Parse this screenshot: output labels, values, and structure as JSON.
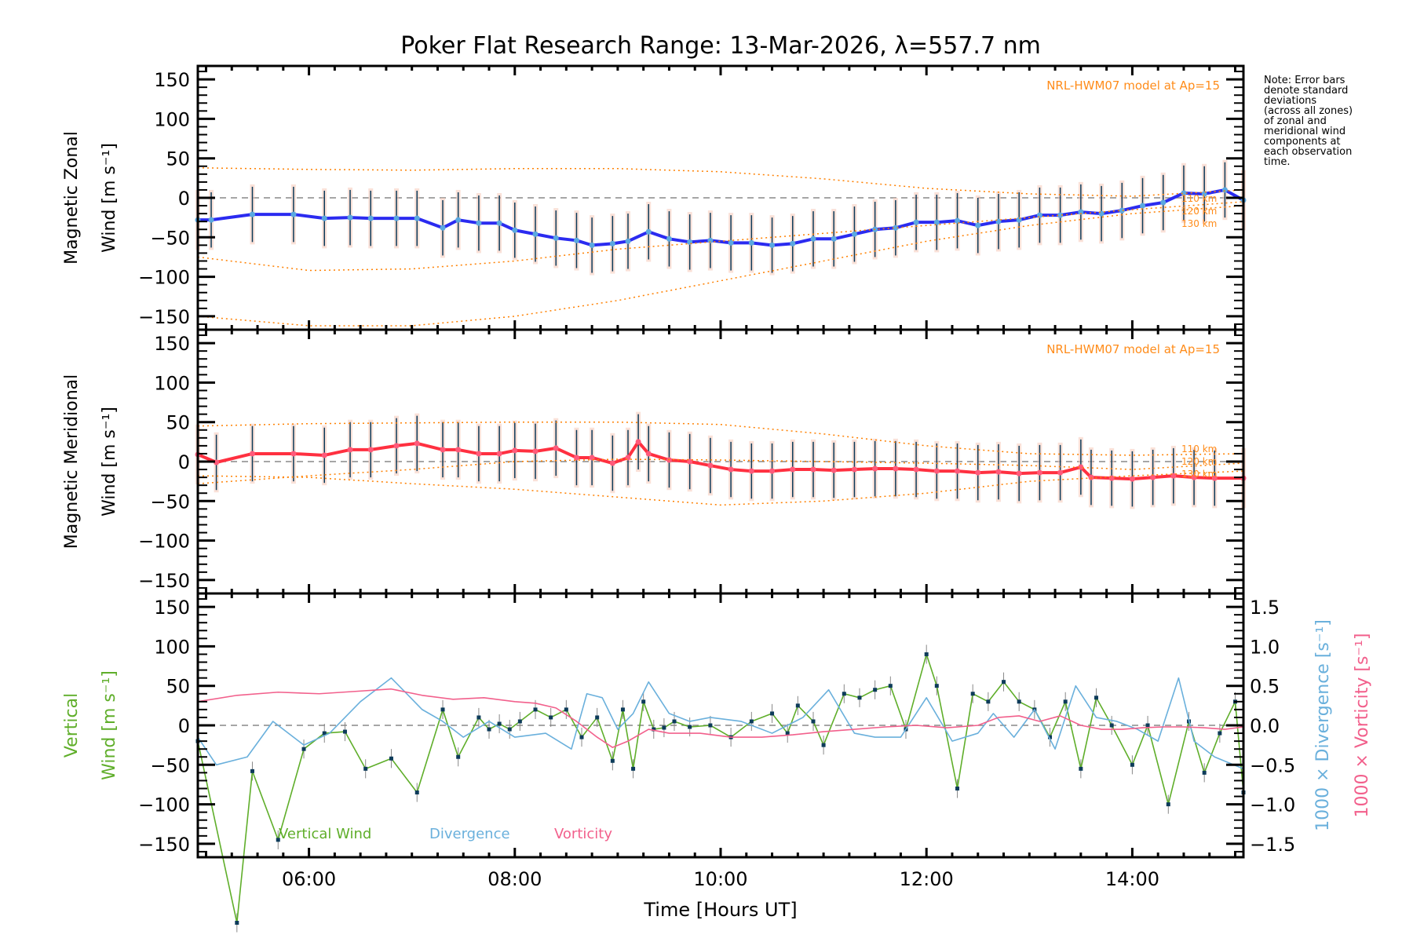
{
  "chart_data": {
    "type": "line",
    "title": "Poker Flat Research Range: 13-Mar-2026, λ=557.7 nm",
    "xlabel": "Time [Hours UT]",
    "xlim": [
      4.92,
      15.08
    ],
    "x_ticks": [
      {
        "value": 6,
        "label": "06:00"
      },
      {
        "value": 8,
        "label": "08:00"
      },
      {
        "value": 10,
        "label": "10:00"
      },
      {
        "value": 12,
        "label": "12:00"
      },
      {
        "value": 14,
        "label": "14:00"
      }
    ],
    "note": "Note: Error bars\ndenote standard\ndeviations\n(across all zones)\nof zonal and\nmeridional wind\ncomponents at\neach observation\ntime.",
    "panels": [
      {
        "name": "zonal",
        "ylabel_line1": "Magnetic Zonal",
        "ylabel_line2": "Wind [m s⁻¹]",
        "ylim": [
          -167,
          167
        ],
        "yticks": [
          150,
          100,
          50,
          0,
          -50,
          -100,
          -150
        ],
        "ytick_labels": [
          "150",
          "100",
          "50",
          "0",
          "−50",
          "−100",
          "−150"
        ],
        "model_label": "NRL-HWM07 model at Ap=15",
        "altitude_labels": [
          "110 km",
          "120 km",
          "130 km"
        ],
        "series": [
          {
            "name": "Mean zonal wind",
            "color": "#2b2bf0",
            "x": [
              4.92,
              5.05,
              5.45,
              5.85,
              6.15,
              6.4,
              6.6,
              6.85,
              7.05,
              7.3,
              7.45,
              7.65,
              7.85,
              8.0,
              8.2,
              8.4,
              8.6,
              8.75,
              8.95,
              9.1,
              9.3,
              9.5,
              9.7,
              9.9,
              10.1,
              10.3,
              10.5,
              10.7,
              10.9,
              11.1,
              11.3,
              11.5,
              11.7,
              11.9,
              12.1,
              12.3,
              12.5,
              12.7,
              12.9,
              13.1,
              13.3,
              13.5,
              13.7,
              13.9,
              14.1,
              14.3,
              14.5,
              14.7,
              14.9,
              15.08
            ],
            "y": [
              -28,
              -28,
              -21,
              -21,
              -26,
              -25,
              -26,
              -26,
              -26,
              -38,
              -28,
              -32,
              -32,
              -41,
              -46,
              -51,
              -54,
              -60,
              -58,
              -55,
              -43,
              -52,
              -56,
              -54,
              -57,
              -57,
              -60,
              -58,
              -52,
              -52,
              -46,
              -40,
              -38,
              -31,
              -31,
              -29,
              -35,
              -30,
              -28,
              -22,
              -22,
              -18,
              -20,
              -16,
              -10,
              -6,
              6,
              5,
              10,
              -3
            ]
          },
          {
            "name": "Model 110 km",
            "color": "#ff8000",
            "style": "dotted",
            "x": [
              4.92,
              6,
              7,
              8,
              9,
              10,
              11,
              12,
              13,
              14,
              15.08
            ],
            "y": [
              38,
              36,
              35,
              37,
              37,
              33,
              24,
              12,
              5,
              2,
              10
            ]
          },
          {
            "name": "Model 120 km",
            "color": "#ff8000",
            "style": "dotted",
            "x": [
              4.92,
              6,
              7,
              8,
              9,
              10,
              11,
              12,
              13,
              14,
              15.08
            ],
            "y": [
              -75,
              -92,
              -90,
              -80,
              -65,
              -55,
              -45,
              -35,
              -25,
              -15,
              -5
            ]
          },
          {
            "name": "Model 130 km",
            "color": "#ff8000",
            "style": "dotted",
            "x": [
              4.92,
              6,
              7,
              8,
              9,
              10,
              11,
              12,
              13,
              14,
              15.08
            ],
            "y": [
              -150,
              -162,
              -162,
              -150,
              -130,
              -105,
              -80,
              -55,
              -35,
              -20,
              -10
            ]
          }
        ]
      },
      {
        "name": "meridional",
        "ylabel_line1": "Magnetic Meridional",
        "ylabel_line2": "Wind [m s⁻¹]",
        "ylim": [
          -167,
          167
        ],
        "yticks": [
          150,
          100,
          50,
          0,
          -50,
          -100,
          -150
        ],
        "ytick_labels": [
          "150",
          "100",
          "50",
          "0",
          "−50",
          "−100",
          "−150"
        ],
        "model_label": "NRL-HWM07 model at Ap=15",
        "altitude_labels": [
          "110 km",
          "120 km",
          "130 km"
        ],
        "series": [
          {
            "name": "Mean meridional wind",
            "color": "#ff3040",
            "x": [
              4.92,
              5.1,
              5.45,
              5.85,
              6.15,
              6.4,
              6.6,
              6.85,
              7.05,
              7.3,
              7.45,
              7.65,
              7.85,
              8.0,
              8.2,
              8.4,
              8.6,
              8.75,
              8.95,
              9.1,
              9.2,
              9.3,
              9.5,
              9.7,
              9.9,
              10.1,
              10.3,
              10.5,
              10.7,
              10.9,
              11.1,
              11.3,
              11.5,
              11.7,
              11.9,
              12.1,
              12.3,
              12.5,
              12.7,
              12.9,
              13.1,
              13.3,
              13.5,
              13.6,
              13.8,
              14.0,
              14.2,
              14.4,
              14.6,
              14.8,
              15.08
            ],
            "y": [
              9,
              -1,
              10,
              10,
              8,
              15,
              15,
              20,
              23,
              15,
              15,
              10,
              10,
              14,
              13,
              17,
              5,
              5,
              -2,
              5,
              25,
              10,
              2,
              0,
              -5,
              -10,
              -12,
              -12,
              -10,
              -10,
              -11,
              -10,
              -9,
              -9,
              -10,
              -12,
              -12,
              -14,
              -13,
              -15,
              -14,
              -14,
              -7,
              -20,
              -21,
              -22,
              -20,
              -18,
              -20,
              -21,
              -21
            ]
          },
          {
            "name": "Model 110 km",
            "color": "#ff8000",
            "style": "dotted",
            "x": [
              4.92,
              6,
              7,
              8,
              9,
              10,
              11,
              12,
              13,
              14,
              15.08
            ],
            "y": [
              45,
              48,
              49,
              50,
              50,
              47,
              35,
              20,
              10,
              8,
              10
            ]
          },
          {
            "name": "Model 120 km",
            "color": "#ff8000",
            "style": "dotted",
            "x": [
              4.92,
              6,
              7,
              8,
              9,
              10,
              11,
              12,
              13,
              14,
              15.08
            ],
            "y": [
              -28,
              -18,
              -10,
              0,
              3,
              2,
              0,
              -2,
              -5,
              -10,
              -2
            ]
          },
          {
            "name": "Model 130 km",
            "color": "#ff8000",
            "style": "dotted",
            "x": [
              4.92,
              6,
              7,
              8,
              9,
              10,
              11,
              12,
              13,
              14,
              15.08
            ],
            "y": [
              -18,
              -20,
              -28,
              -35,
              -45,
              -55,
              -50,
              -40,
              -25,
              -18,
              -12
            ]
          }
        ]
      },
      {
        "name": "vertical",
        "ylabel_line1": "Vertical",
        "ylabel_line2": "Wind [m s⁻¹]",
        "ylim": [
          -167,
          167
        ],
        "yticks": [
          150,
          100,
          50,
          0,
          -50,
          -100,
          -150
        ],
        "ytick_labels": [
          "150",
          "100",
          "50",
          "0",
          "−50",
          "−100",
          "−150"
        ],
        "y2label_div": "1000 × Divergence [s⁻¹]",
        "y2label_vor": "1000 × Vorticity [s⁻¹]",
        "y2lim": [
          -1.67,
          1.67
        ],
        "y2ticks": [
          1.5,
          1.0,
          0.5,
          0.0,
          -0.5,
          -1.0,
          -1.5
        ],
        "y2tick_labels": [
          "1.5",
          "1.0",
          "0.5",
          "0.0",
          "−0.5",
          "−1.0",
          "−1.5"
        ],
        "legend": [
          "Vertical Wind",
          "Divergence",
          "Vorticity"
        ],
        "series": [
          {
            "name": "Vertical Wind",
            "color": "#5fae2a",
            "axis": "left",
            "x": [
              4.92,
              5.3,
              5.45,
              5.7,
              5.95,
              6.15,
              6.35,
              6.55,
              6.8,
              7.05,
              7.3,
              7.45,
              7.65,
              7.75,
              7.85,
              7.95,
              8.05,
              8.2,
              8.35,
              8.5,
              8.65,
              8.8,
              8.95,
              9.05,
              9.15,
              9.25,
              9.35,
              9.45,
              9.55,
              9.7,
              9.9,
              10.1,
              10.3,
              10.5,
              10.65,
              10.75,
              10.9,
              11.0,
              11.2,
              11.35,
              11.5,
              11.65,
              11.8,
              12.0,
              12.1,
              12.3,
              12.45,
              12.6,
              12.75,
              12.9,
              13.05,
              13.2,
              13.35,
              13.5,
              13.65,
              13.8,
              14.0,
              14.15,
              14.35,
              14.55,
              14.7,
              14.85,
              15.0,
              15.08
            ],
            "y": [
              -20,
              -250,
              -58,
              -145,
              -30,
              -10,
              -8,
              -55,
              -42,
              -85,
              20,
              -40,
              10,
              -5,
              2,
              -5,
              5,
              20,
              10,
              20,
              -15,
              10,
              -45,
              20,
              -55,
              30,
              -5,
              -3,
              5,
              -2,
              0,
              -15,
              5,
              15,
              -10,
              25,
              5,
              -25,
              40,
              35,
              45,
              50,
              -5,
              90,
              50,
              -80,
              40,
              30,
              55,
              30,
              20,
              -15,
              30,
              -55,
              35,
              0,
              -50,
              0,
              -100,
              5,
              -60,
              -10,
              30,
              -85
            ]
          },
          {
            "name": "Divergence",
            "color": "#6ab0dc",
            "axis": "right",
            "x": [
              4.92,
              5.1,
              5.4,
              5.65,
              5.95,
              6.2,
              6.5,
              6.8,
              7.1,
              7.3,
              7.5,
              7.75,
              8.0,
              8.3,
              8.55,
              8.7,
              8.85,
              9.0,
              9.15,
              9.3,
              9.5,
              9.7,
              9.9,
              10.2,
              10.5,
              10.8,
              11.05,
              11.3,
              11.5,
              11.75,
              12.0,
              12.25,
              12.5,
              12.65,
              12.85,
              13.05,
              13.25,
              13.45,
              13.65,
              13.85,
              14.05,
              14.25,
              14.45,
              14.6,
              14.8,
              15.08
            ],
            "y": [
              -0.15,
              -0.5,
              -0.4,
              0.05,
              -0.25,
              -0.1,
              0.3,
              0.6,
              0.2,
              0.05,
              -0.15,
              0.05,
              -0.15,
              -0.1,
              -0.3,
              0.4,
              0.35,
              -0.05,
              0.15,
              0.55,
              0.15,
              0.05,
              0.1,
              0.05,
              -0.1,
              0.1,
              0.45,
              -0.1,
              -0.15,
              -0.15,
              0.35,
              -0.2,
              -0.1,
              0.15,
              -0.15,
              0.2,
              -0.3,
              0.5,
              0.1,
              0.05,
              -0.05,
              -0.2,
              0.6,
              -0.2,
              -0.4,
              -0.55
            ]
          },
          {
            "name": "Vorticity",
            "color": "#f2608c",
            "axis": "right",
            "x": [
              4.92,
              5.3,
              5.7,
              6.1,
              6.45,
              6.8,
              7.1,
              7.4,
              7.7,
              8.0,
              8.2,
              8.4,
              8.6,
              8.8,
              8.95,
              9.1,
              9.3,
              9.5,
              9.8,
              10.1,
              10.4,
              10.7,
              11.0,
              11.3,
              11.6,
              11.9,
              12.2,
              12.5,
              12.7,
              12.9,
              13.1,
              13.3,
              13.5,
              13.7,
              13.9,
              14.1,
              14.3,
              14.5,
              14.7,
              14.9,
              15.08
            ],
            "y": [
              0.3,
              0.38,
              0.42,
              0.4,
              0.43,
              0.46,
              0.38,
              0.33,
              0.35,
              0.3,
              0.28,
              0.22,
              0.05,
              -0.15,
              -0.28,
              -0.2,
              -0.05,
              -0.1,
              -0.1,
              -0.15,
              -0.15,
              -0.12,
              -0.08,
              -0.05,
              -0.02,
              0.0,
              -0.03,
              0.0,
              0.1,
              0.12,
              0.05,
              0.12,
              0.0,
              -0.05,
              -0.05,
              -0.03,
              -0.02,
              -0.02,
              -0.03,
              -0.05,
              -0.02
            ]
          }
        ]
      }
    ]
  }
}
